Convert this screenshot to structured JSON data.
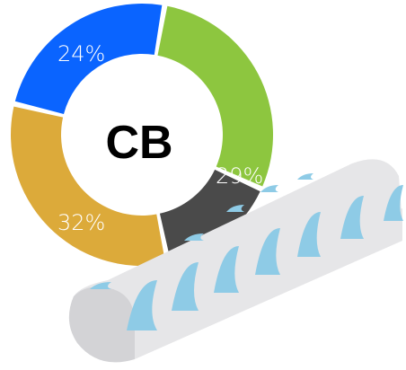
{
  "chart_data": {
    "type": "pie",
    "style": "donut",
    "center_label": "CB",
    "slices": [
      {
        "label": "29%",
        "value": 29,
        "color": "#8dc63f"
      },
      {
        "label": "",
        "value": 15,
        "color": "#4a4a4a"
      },
      {
        "label": "32%",
        "value": 32,
        "color": "#dcaa3a"
      },
      {
        "label": "24%",
        "value": 24,
        "color": "#0a64ff"
      }
    ]
  },
  "decor": {
    "log_color": "#e6e6e8",
    "log_shade": "#d3d3d6",
    "cut_color": "#8ecbe6"
  }
}
